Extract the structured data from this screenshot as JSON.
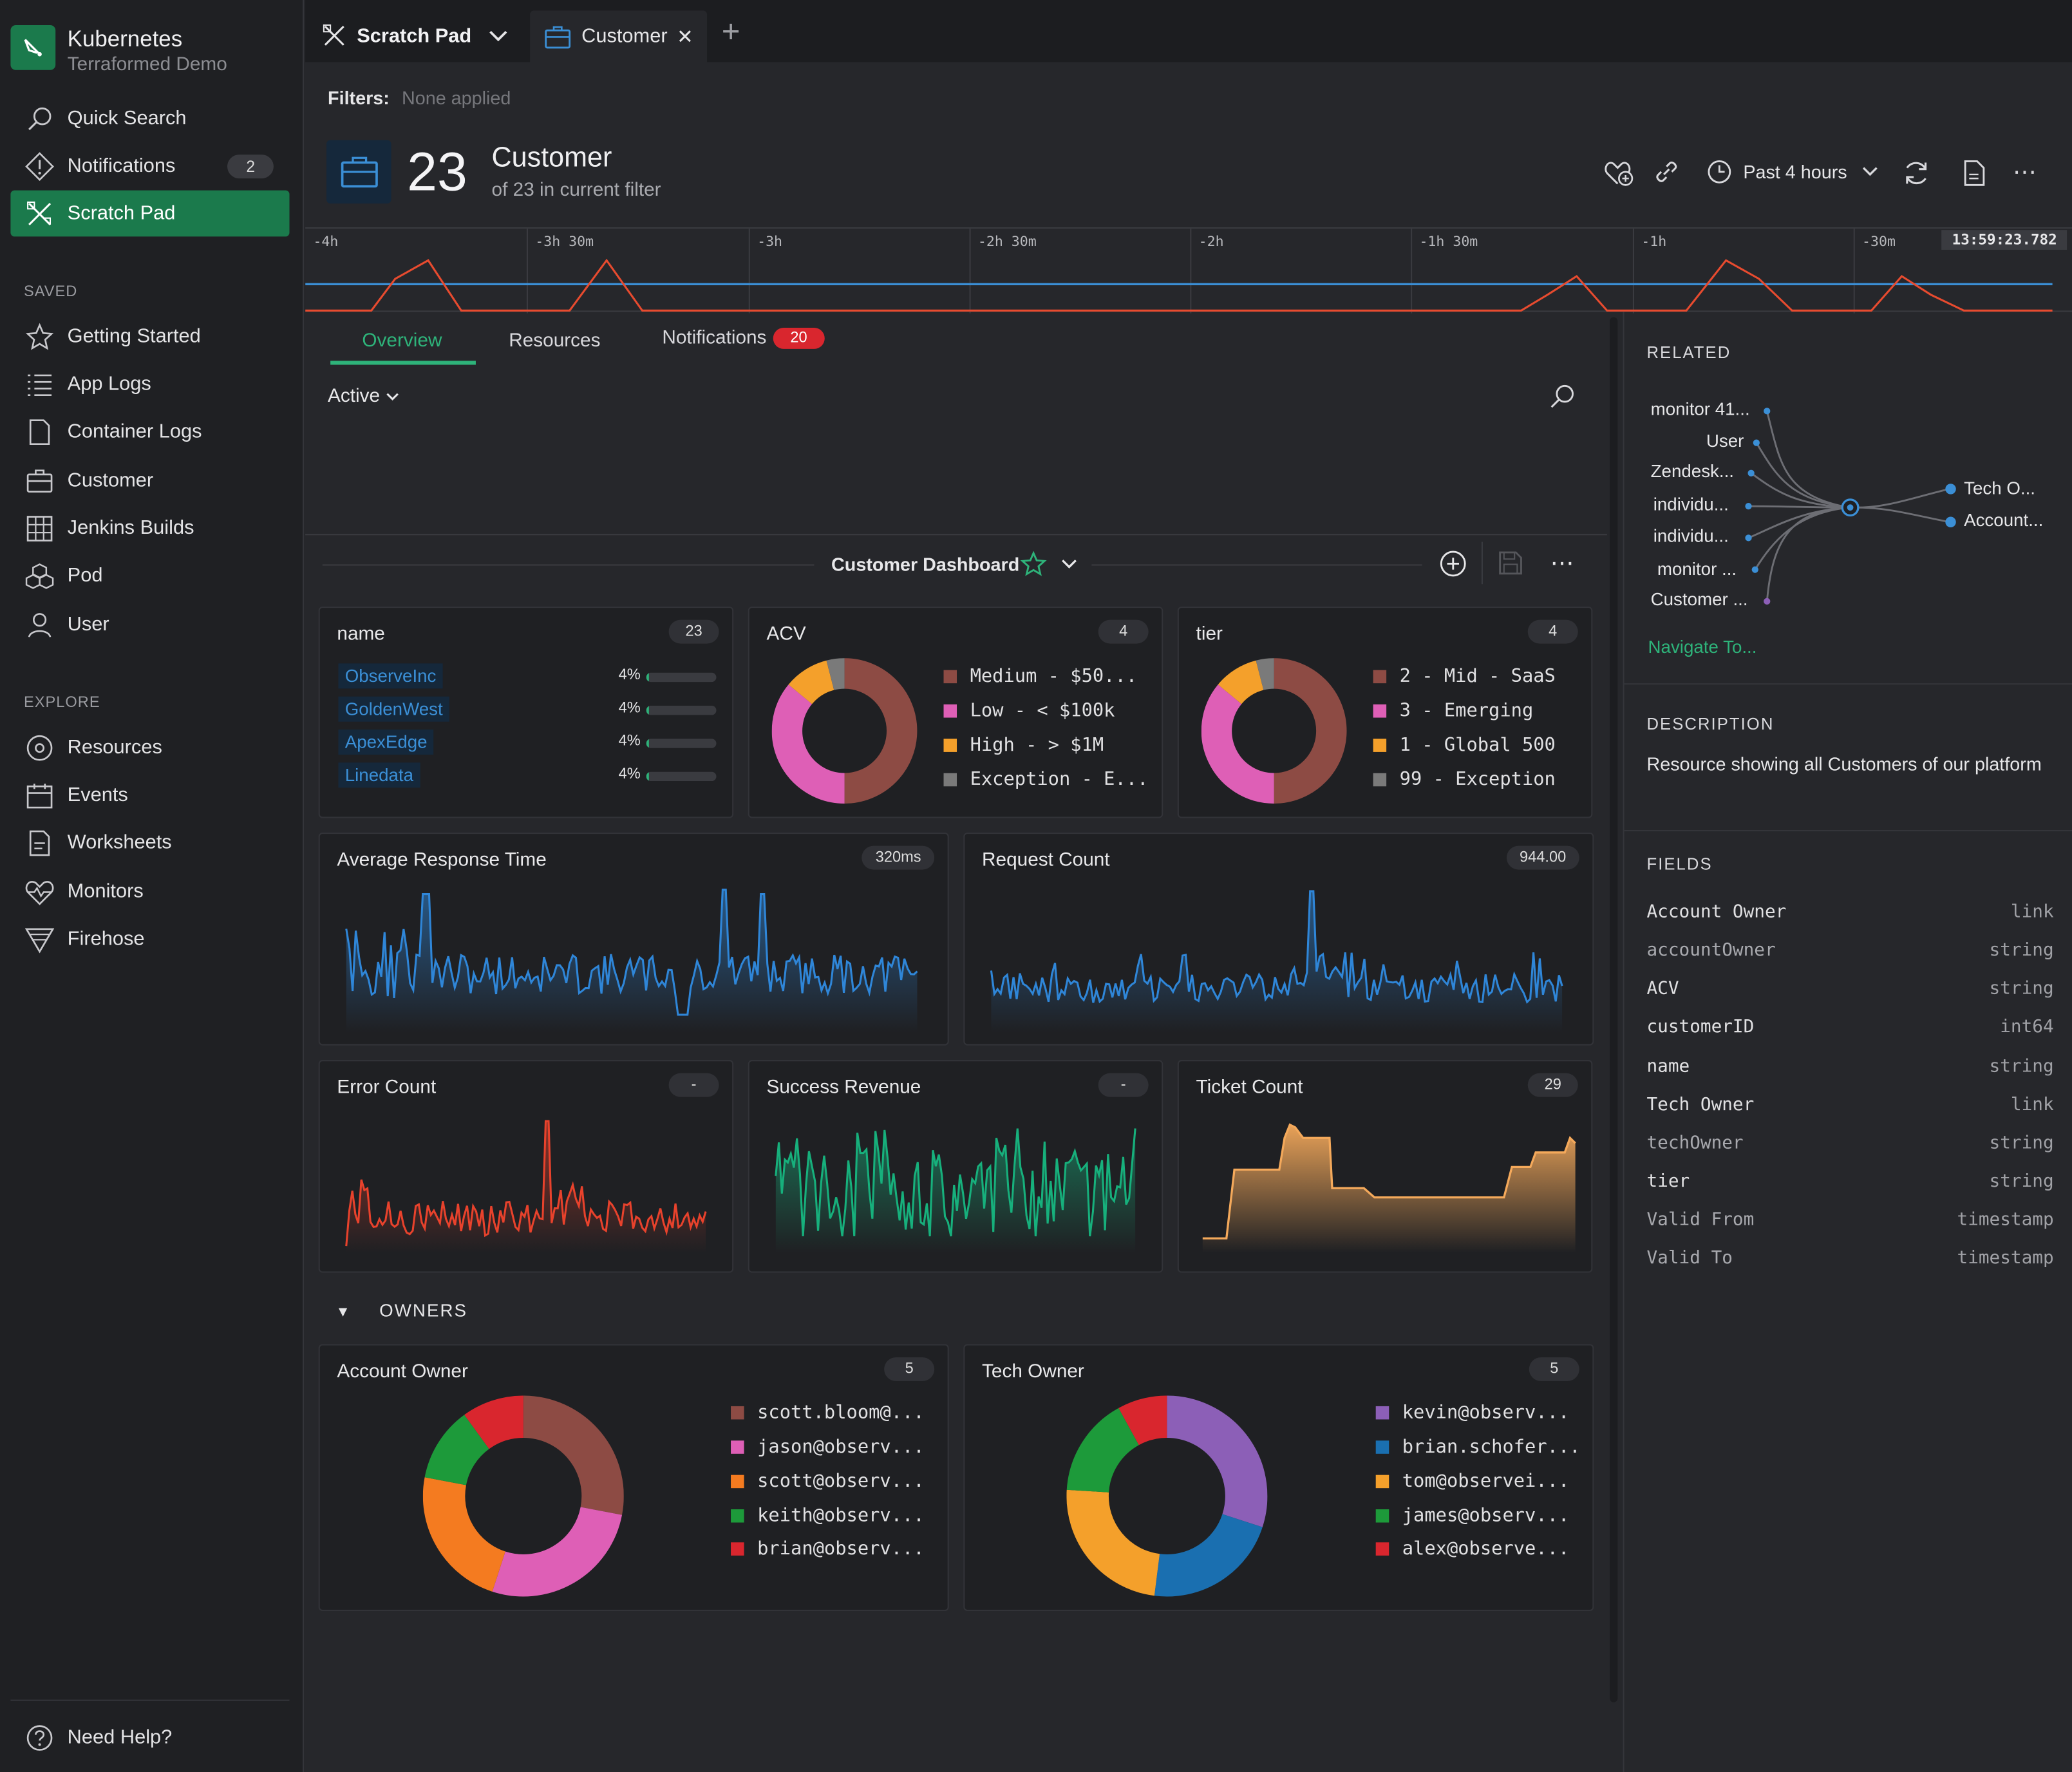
{
  "app": {
    "title": "Kubernetes",
    "subtitle": "Terraformed Demo"
  },
  "sidebar": {
    "nav": [
      {
        "label": "Quick Search",
        "icon": "search-icon"
      },
      {
        "label": "Notifications",
        "icon": "alert-icon",
        "badge": "2"
      },
      {
        "label": "Scratch Pad",
        "icon": "scratch-pad-icon",
        "active": true
      }
    ],
    "saved_header": "SAVED",
    "saved": [
      {
        "label": "Getting Started",
        "icon": "star-icon"
      },
      {
        "label": "App Logs",
        "icon": "list-icon"
      },
      {
        "label": "Container Logs",
        "icon": "document-icon"
      },
      {
        "label": "Customer",
        "icon": "briefcase-icon"
      },
      {
        "label": "Jenkins Builds",
        "icon": "grid-icon"
      },
      {
        "label": "Pod",
        "icon": "cubes-icon"
      },
      {
        "label": "User",
        "icon": "user-icon"
      }
    ],
    "explore_header": "EXPLORE",
    "explore": [
      {
        "label": "Resources",
        "icon": "target-icon"
      },
      {
        "label": "Events",
        "icon": "calendar-icon"
      },
      {
        "label": "Worksheets",
        "icon": "worksheet-icon"
      },
      {
        "label": "Monitors",
        "icon": "heart-pulse-icon"
      },
      {
        "label": "Firehose",
        "icon": "funnel-icon"
      }
    ],
    "help": "Need Help?"
  },
  "tabs": {
    "items": [
      {
        "label": "Scratch Pad"
      },
      {
        "label": "Customer"
      }
    ],
    "add": "+"
  },
  "filters": {
    "label": "Filters:",
    "value": "None applied"
  },
  "header": {
    "count": "23",
    "title": "Customer",
    "subtitle": "of 23 in current filter",
    "time_range": "Past 4 hours"
  },
  "timeline": {
    "ticks": [
      "-4h",
      "-3h 30m",
      "-3h",
      "-2h 30m",
      "-2h",
      "-1h 30m",
      "-1h",
      "-30m"
    ],
    "current_time": "13:59:23.782"
  },
  "content_tabs": {
    "overview": "Overview",
    "resources": "Resources",
    "notifications": "Notifications",
    "notifications_badge": "20"
  },
  "filter_dropdown": "Active",
  "dashboard": {
    "title": "Customer Dashboard"
  },
  "cards": {
    "name": {
      "title": "name",
      "badge": "23",
      "rows": [
        {
          "label": "ObserveInc",
          "pct": "4%",
          "value": 4
        },
        {
          "label": "GoldenWest",
          "pct": "4%",
          "value": 4
        },
        {
          "label": "ApexEdge",
          "pct": "4%",
          "value": 4
        },
        {
          "label": "Linedata",
          "pct": "4%",
          "value": 4
        }
      ]
    },
    "acv": {
      "title": "ACV",
      "badge": "4",
      "legend": [
        "Medium  -  $50...",
        "Low  -  < $100k",
        "High  -  > $1M",
        "Exception  -  E..."
      ]
    },
    "tier": {
      "title": "tier",
      "badge": "4",
      "legend": [
        "2  -  Mid  -  SaaS",
        "3  -  Emerging",
        "1  -  Global 500",
        "99  -  Exception"
      ]
    },
    "avg_response": {
      "title": "Average Response Time",
      "badge": "320ms"
    },
    "request_count": {
      "title": "Request Count",
      "badge": "944.00"
    },
    "error_count": {
      "title": "Error Count",
      "badge": "-"
    },
    "success_revenue": {
      "title": "Success Revenue",
      "badge": "-"
    },
    "ticket_count": {
      "title": "Ticket Count",
      "badge": "29"
    }
  },
  "owners": {
    "header": "OWNERS",
    "account_owner": {
      "title": "Account Owner",
      "badge": "5",
      "legend": [
        "scott.bloom@...",
        "jason@observ...",
        "scott@observ...",
        "keith@observ...",
        "brian@observ..."
      ]
    },
    "tech_owner": {
      "title": "Tech Owner",
      "badge": "5",
      "legend": [
        "kevin@observ...",
        "brian.schofer...",
        "tom@observei...",
        "james@observ...",
        "alex@observe..."
      ]
    }
  },
  "related": {
    "header": "RELATED",
    "left": [
      "monitor 41...",
      "User",
      "Zendesk...",
      "individu...",
      "individu...",
      "monitor ...",
      "Customer ..."
    ],
    "right": [
      "Tech O...",
      "Account..."
    ],
    "navigate": "Navigate To..."
  },
  "description": {
    "header": "DESCRIPTION",
    "text": "Resource showing all Customers of our platform"
  },
  "fields": {
    "header": "FIELDS",
    "rows": [
      {
        "name": "Account Owner",
        "type": "link"
      },
      {
        "name": "accountOwner",
        "type": "string"
      },
      {
        "name": "ACV",
        "type": "string"
      },
      {
        "name": "customerID",
        "type": "int64"
      },
      {
        "name": "name",
        "type": "string"
      },
      {
        "name": "Tech Owner",
        "type": "link"
      },
      {
        "name": "techOwner",
        "type": "string"
      },
      {
        "name": "tier",
        "type": "string"
      },
      {
        "name": "Valid From",
        "type": "timestamp"
      },
      {
        "name": "Valid To",
        "type": "timestamp"
      }
    ]
  },
  "chart_data": [
    {
      "type": "pie",
      "title": "ACV",
      "categories": [
        "Medium  -  $50...",
        "Low  -  < $100k",
        "High  -  > $1M",
        "Exception  -  E..."
      ],
      "values": [
        0.5,
        0.36,
        0.1,
        0.04
      ],
      "colors": [
        "#8d4b44",
        "#de5fb6",
        "#f4a02b",
        "#7a7a7a"
      ]
    },
    {
      "type": "pie",
      "title": "tier",
      "categories": [
        "2  -  Mid  -  SaaS",
        "3  -  Emerging",
        "1  -  Global 500",
        "99  -  Exception"
      ],
      "values": [
        0.5,
        0.36,
        0.1,
        0.04
      ],
      "colors": [
        "#8d4b44",
        "#de5fb6",
        "#f4a02b",
        "#7a7a7a"
      ]
    },
    {
      "type": "pie",
      "title": "Account Owner",
      "categories": [
        "scott.bloom@...",
        "jason@observ...",
        "scott@observ...",
        "keith@observ...",
        "brian@observ..."
      ],
      "values": [
        0.28,
        0.27,
        0.23,
        0.12,
        0.1
      ],
      "colors": [
        "#8d4b44",
        "#de5fb6",
        "#f47b20",
        "#1d9a3a",
        "#d9262e"
      ]
    },
    {
      "type": "pie",
      "title": "Tech Owner",
      "categories": [
        "kevin@observ...",
        "brian.schofer...",
        "tom@observei...",
        "james@observ...",
        "alex@observe..."
      ],
      "values": [
        0.3,
        0.22,
        0.24,
        0.16,
        0.08
      ],
      "colors": [
        "#8c5fb7",
        "#1a6fb0",
        "#f4a02b",
        "#1d9a3a",
        "#d9262e"
      ]
    }
  ]
}
